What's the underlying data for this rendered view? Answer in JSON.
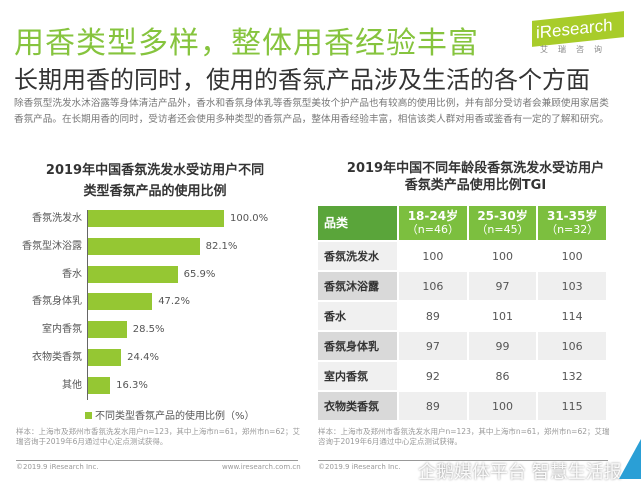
{
  "header": {
    "title": "用香类型多样，整体用香经验丰富",
    "subtitle": "长期用香的同时，使用的香氛产品涉及生活的各个方面",
    "logo": "iResearch",
    "logo_sub": "艾瑞咨询"
  },
  "intro": "除香氛型洗发水沐浴露等身体清洁产品外，香水和香氛身体乳等香氛型美妆个护产品也有较高的使用比例，并有部分受访者会兼顾使用家居类香氛产品。在长期用香的同时，受访者还会使用多种类型的香氛产品，整体用香经验丰富，相信该类人群对用香或鉴香有一定的了解和研究。",
  "chart_data": {
    "type": "bar",
    "orientation": "horizontal",
    "title": "2019年中国香氛洗发水受访用户不同类型香氛产品的使用比例",
    "title_lines": [
      "2019年中国香氛洗发水受访用户不同",
      "类型香氛产品的使用比例"
    ],
    "categories": [
      "香氛洗发水",
      "香氛型沐浴露",
      "香水",
      "香氛身体乳",
      "室内香氛",
      "衣物类香氛",
      "其他"
    ],
    "values": [
      100.0,
      82.1,
      65.9,
      47.2,
      28.5,
      24.4,
      16.3
    ],
    "labels": [
      "100.0%",
      "82.1%",
      "65.9%",
      "47.2%",
      "28.5%",
      "24.4%",
      "16.3%"
    ],
    "legend": "不同类型香氛产品的使用比例（%）",
    "color": "#95c733"
  },
  "left_note": "样本：上海市及郑州市香氛洗发水用户n=123，其中上海市n=61，郑州市n=62；艾瑞咨询于2019年6月通过中心定点测试获得。",
  "left_footer": {
    "copyright": "©2019.9 iResearch Inc.",
    "url": "www.iresearch.com.cn"
  },
  "table": {
    "title_lines": [
      "2019年中国不同年龄段香氛洗发水受访用户",
      "香氛类产品使用比例TGI"
    ],
    "headers": [
      {
        "l1": "品类",
        "l2": ""
      },
      {
        "l1": "18-24岁",
        "l2": "（n=46）"
      },
      {
        "l1": "25-30岁",
        "l2": "（n=45）"
      },
      {
        "l1": "31-35岁",
        "l2": "（n=32）"
      }
    ],
    "rows": [
      [
        "香氛洗发水",
        "100",
        "100",
        "100"
      ],
      [
        "香氛沐浴露",
        "106",
        "97",
        "103"
      ],
      [
        "香水",
        "89",
        "101",
        "114"
      ],
      [
        "香氛身体乳",
        "97",
        "99",
        "106"
      ],
      [
        "室内香氛",
        "92",
        "86",
        "132"
      ],
      [
        "衣物类香氛",
        "89",
        "100",
        "115"
      ]
    ]
  },
  "right_note": "样本：上海市及郑州市香氛洗发水用户n=123，其中上海市n=61，郑州市n=62；艾瑞咨询于2019年6月通过中心定点测试获得。",
  "right_footer": {
    "copyright": "©2019.9 iResearch Inc."
  },
  "watermark": "企鹅媒体平台 智慧生活报"
}
